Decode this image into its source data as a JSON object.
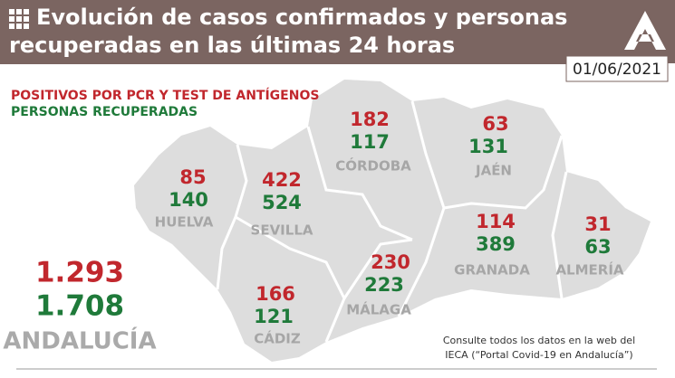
{
  "header": {
    "title_lines": [
      "Evolución de casos confirmados y personas",
      "recuperadas en las últimas 24 horas"
    ],
    "date": "01/06/2021"
  },
  "legend": {
    "positives": "POSITIVOS POR PCR Y TEST DE ANTÍGENOS",
    "recovered": "PERSONAS RECUPERADAS"
  },
  "provinces": [
    {
      "name": "HUELVA",
      "positives": 85,
      "recovered": 140
    },
    {
      "name": "SEVILLA",
      "positives": 422,
      "recovered": 524
    },
    {
      "name": "CÓRDOBA",
      "positives": 182,
      "recovered": 117
    },
    {
      "name": "JAÉN",
      "positives": 63,
      "recovered": 131
    },
    {
      "name": "GRANADA",
      "positives": 114,
      "recovered": 389
    },
    {
      "name": "ALMERÍA",
      "positives": 31,
      "recovered": 63
    },
    {
      "name": "MÁLAGA",
      "positives": 230,
      "recovered": 223
    },
    {
      "name": "CÁDIZ",
      "positives": 166,
      "recovered": 121
    }
  ],
  "total": {
    "positives": "1.293",
    "recovered": "1.708",
    "region": "ANDALUCÍA"
  },
  "footnote": {
    "lines": [
      "Consulte todos los datos en la web del",
      "IECA (“Portal Covid-19 en Andalucía”)"
    ]
  }
}
